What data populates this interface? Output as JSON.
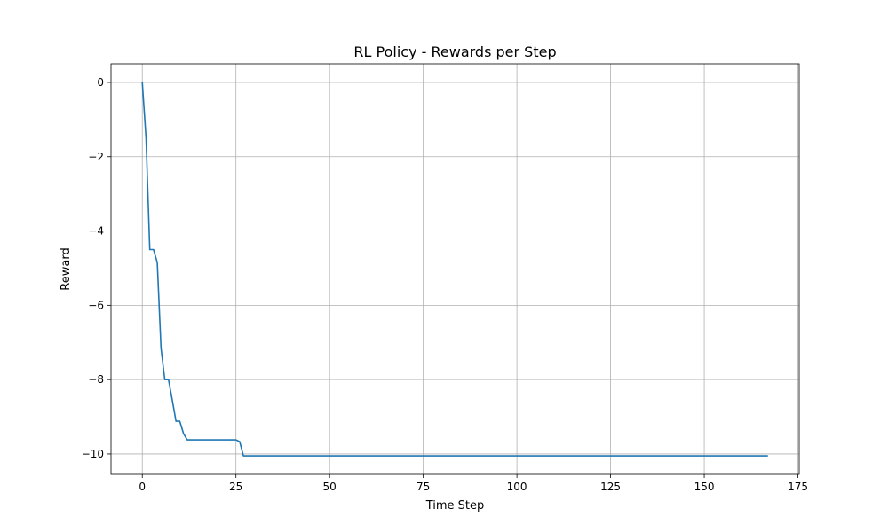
{
  "chart_data": {
    "type": "line",
    "title": "RL Policy - Rewards per Step",
    "xlabel": "Time Step",
    "ylabel": "Reward",
    "xlim": [
      -8.35,
      175.35
    ],
    "ylim": [
      -10.55,
      0.5
    ],
    "xticks": [
      0,
      25,
      50,
      75,
      100,
      125,
      150,
      175
    ],
    "yticks": [
      0,
      -2,
      -4,
      -6,
      -8,
      -10
    ],
    "xtick_labels": [
      "0",
      "25",
      "50",
      "75",
      "100",
      "125",
      "150",
      "175"
    ],
    "ytick_labels": [
      "0",
      "−2",
      "−4",
      "−6",
      "−8",
      "−10"
    ],
    "grid": true,
    "color": "#1f77b4",
    "series": [
      {
        "x": [
          0,
          1,
          2,
          3,
          4,
          5,
          6,
          7,
          8,
          9,
          10,
          11,
          12,
          13,
          14,
          15,
          16,
          17,
          18,
          19,
          20,
          21,
          22,
          23,
          24,
          25,
          26,
          27,
          30,
          50,
          75,
          100,
          125,
          150,
          167
        ],
        "y": [
          0,
          -1.5,
          -4.5,
          -4.5,
          -4.85,
          -7.15,
          -8.0,
          -8.0,
          -8.55,
          -9.12,
          -9.12,
          -9.45,
          -9.62,
          -9.62,
          -9.62,
          -9.62,
          -9.62,
          -9.62,
          -9.62,
          -9.62,
          -9.62,
          -9.62,
          -9.62,
          -9.62,
          -9.62,
          -9.62,
          -9.67,
          -10.05,
          -10.05,
          -10.05,
          -10.05,
          -10.05,
          -10.05,
          -10.05,
          -10.05
        ]
      }
    ]
  }
}
